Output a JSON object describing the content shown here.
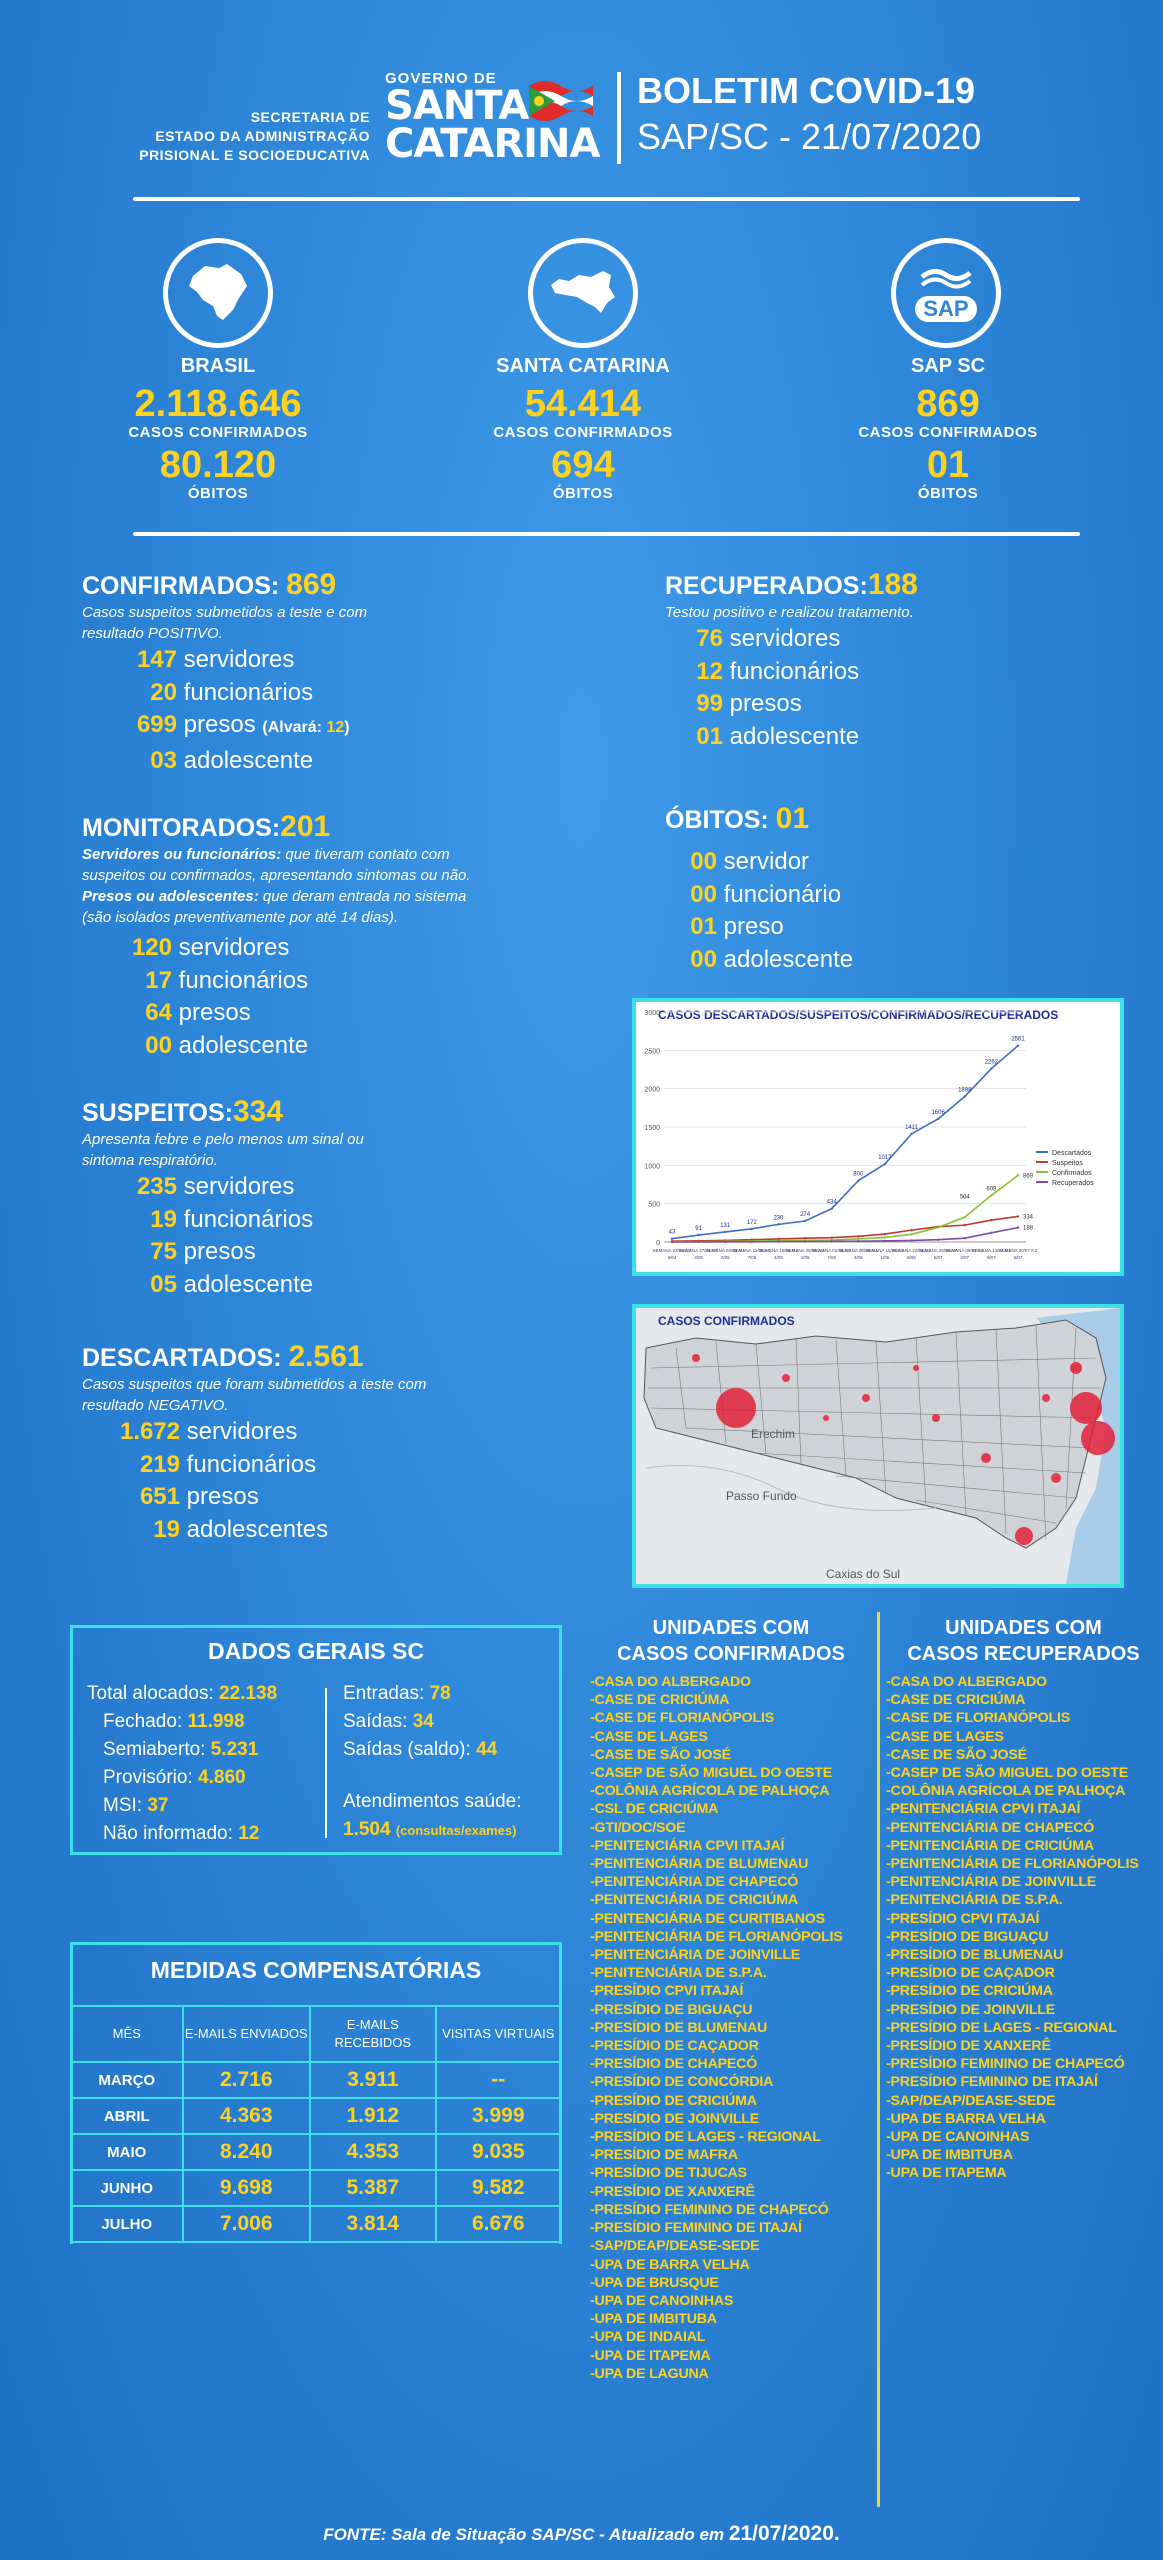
{
  "header": {
    "secretaria": [
      "SECRETARIA DE",
      "ESTADO DA ADMINISTRAÇÃO",
      "PRISIONAL E SOCIOEDUCATIVA"
    ],
    "logo_gov": "GOVERNO DE",
    "logo_line1": "SANTA",
    "logo_line2": "CATARINA",
    "title": "BOLETIM COVID-19",
    "subtitle": "SAP/SC - 21/07/2020"
  },
  "stats": [
    {
      "name": "BRASIL",
      "cases": "2.118.646",
      "cases_label": "CASOS CONFIRMADOS",
      "deaths": "80.120",
      "deaths_label": "ÓBITOS"
    },
    {
      "name": "SANTA CATARINA",
      "cases": "54.414",
      "cases_label": "CASOS CONFIRMADOS",
      "deaths": "694",
      "deaths_label": "ÓBITOS"
    },
    {
      "name": "SAP SC",
      "cases": "869",
      "cases_label": "CASOS CONFIRMADOS",
      "deaths": "01",
      "deaths_label": "ÓBITOS"
    }
  ],
  "sap_icon_text": "SAP",
  "confirmados": {
    "title": "CONFIRMADOS:",
    "total": "869",
    "desc": [
      "Casos suspeitos submetidos a teste e com",
      "resultado POSITIVO."
    ],
    "rows": [
      [
        "147",
        "servidores"
      ],
      [
        "20",
        "funcionários"
      ],
      [
        "699",
        "presos"
      ],
      [
        "03",
        "adolescente"
      ]
    ],
    "alvara_label": "(Alvará: ",
    "alvara_value": "12",
    "alvara_close": ")"
  },
  "monitorados": {
    "title": "MONITORADOS:",
    "total": "201",
    "desc_b1": "Servidores ou funcionários:",
    "desc_1": " que tiveram contato com",
    "desc_2": "suspeitos ou confirmados, apresentando sintomas ou não.",
    "desc_b3": "Presos ou adolescentes:",
    "desc_3": " que deram entrada no sistema",
    "desc_4": "(são isolados preventivamente por até 14 dias).",
    "rows": [
      [
        "120",
        "servidores"
      ],
      [
        "17",
        "funcionários"
      ],
      [
        "64",
        "presos"
      ],
      [
        "00",
        "adolescente"
      ]
    ]
  },
  "suspeitos": {
    "title": "SUSPEITOS:",
    "total": "334",
    "desc": [
      "Apresenta febre e pelo menos um sinal ou",
      "sintoma respiratório."
    ],
    "rows": [
      [
        "235",
        "servidores"
      ],
      [
        "19",
        "funcionários"
      ],
      [
        "75",
        "presos"
      ],
      [
        "05",
        "adolescente"
      ]
    ]
  },
  "descartados": {
    "title": "DESCARTADOS:",
    "total": "2.561",
    "desc": [
      "Casos suspeitos que foram submetidos a teste com",
      "resultado NEGATIVO."
    ],
    "rows": [
      [
        "1.672",
        "servidores"
      ],
      [
        "219",
        "funcionários"
      ],
      [
        "651",
        "presos"
      ],
      [
        "19",
        "adolescentes"
      ]
    ]
  },
  "recuperados": {
    "title": "RECUPERADOS:",
    "total": "188",
    "desc": [
      "Testou positivo e realizou tratamento."
    ],
    "rows": [
      [
        "76",
        "servidores"
      ],
      [
        "12",
        "funcionários"
      ],
      [
        "99",
        "presos"
      ],
      [
        "01",
        "adolescente"
      ]
    ]
  },
  "obitos": {
    "title": "ÓBITOS:",
    "total": "01",
    "rows": [
      [
        "00",
        "servidor"
      ],
      [
        "00",
        "funcionário"
      ],
      [
        "01",
        "preso"
      ],
      [
        "00",
        "adolescente"
      ]
    ]
  },
  "chart_data": {
    "type": "line",
    "title": "CASOS DESCARTADOS/SUSPEITOS/CONFIRMADOS/RECUPERADOS",
    "xlabel": "",
    "ylabel": "",
    "ylim": [
      0,
      3000
    ],
    "yticks": [
      "0",
      "500",
      "1000",
      "1500",
      "2000",
      "2500",
      "3000"
    ],
    "categories": [
      "SEMANA 22/04 A 26/04",
      "SEMANA 27/04 A 03/05",
      "SEMANA 04/05 A 10/05",
      "SEMANA 11/05 A 17/05",
      "SEMANA 18/05 A 24/05",
      "SEMANA 25/05 A 31/05",
      "SEMANA 01/06 A 07/06",
      "SEMANA 08/06 A 14/06",
      "SEMANA 15/06 A 21/06",
      "SEMANA 22/06 A 28/06",
      "SEMANA 29/06 A 05/07",
      "SEMANA 06/07 A 12/07",
      "SEMANA 13/07 A 19/07",
      "SEMANA 20/07 A 26/07"
    ],
    "series": [
      {
        "name": "Descartados",
        "color": "#3b6fc4",
        "values": [
          43,
          91,
          131,
          172,
          230,
          274,
          434,
          800,
          1017,
          1411,
          1606,
          1898,
          2262,
          2561
        ]
      },
      {
        "name": "Suspeitos",
        "color": "#c0392b",
        "values": [
          10,
          15,
          20,
          30,
          40,
          50,
          56,
          74,
          103,
          155,
          200,
          220,
          286,
          334
        ]
      },
      {
        "name": "Confirmados",
        "color": "#8cbf3a",
        "values": [
          3,
          5,
          8,
          12,
          16,
          20,
          26,
          40,
          60,
          100,
          190,
          324,
          609,
          869
        ]
      },
      {
        "name": "Recuperados",
        "color": "#7a4fa3",
        "values": [
          0,
          1,
          2,
          3,
          5,
          6,
          8,
          10,
          14,
          20,
          30,
          50,
          120,
          188
        ]
      }
    ],
    "value_labels": [
      "43",
      "91",
      "131",
      "172",
      "230",
      "274",
      "434",
      "800",
      "1017",
      "1411",
      "1606",
      "1898",
      "2262",
      "2561",
      "869",
      "609",
      "504",
      "334",
      "188"
    ]
  },
  "map": {
    "title": "CASOS CONFIRMADOS",
    "cities": [
      "Erechim",
      "Passo Fundo",
      "Caxias do Sul"
    ]
  },
  "dados_gerais": {
    "title": "DADOS GERAIS SC",
    "total_label": "Total alocados: ",
    "total_value": "22.138",
    "left": [
      [
        "Fechado: ",
        "11.998"
      ],
      [
        "Semiaberto: ",
        "5.231"
      ],
      [
        "Provisório: ",
        "4.860"
      ],
      [
        "MSI: ",
        "37"
      ],
      [
        "Não informado: ",
        "12"
      ]
    ],
    "right": [
      [
        "Entradas: ",
        "78"
      ],
      [
        "Saídas: ",
        "34"
      ],
      [
        "Saídas (saldo): ",
        "44"
      ]
    ],
    "atend_label": "Atendimentos saúde:",
    "atend_value": "1.504",
    "atend_note": "(consultas/exames)"
  },
  "medidas": {
    "title": "MEDIDAS COMPENSATÓRIAS",
    "headers": [
      "MÊS",
      "E-MAILS ENVIADOS",
      "E-MAILS RECEBIDOS",
      "VISITAS VIRTUAIS"
    ],
    "rows": [
      [
        "MARÇO",
        "2.716",
        "3.911",
        "--"
      ],
      [
        "ABRIL",
        "4.363",
        "1.912",
        "3.999"
      ],
      [
        "MAIO",
        "8.240",
        "4.353",
        "9.035"
      ],
      [
        "JUNHO",
        "9.698",
        "5.387",
        "9.582"
      ],
      [
        "JULHO",
        "7.006",
        "3.814",
        "6.676"
      ]
    ]
  },
  "unidades_confirmados": {
    "title_1": "UNIDADES COM",
    "title_2": "CASOS CONFIRMADOS",
    "items": [
      "-CASA DO ALBERGADO",
      "-CASE DE CRICIÚMA",
      "-CASE DE FLORIANÓPOLIS",
      "-CASE DE LAGES",
      "-CASE DE SÃO JOSÉ",
      "-CASEP DE SÃO MIGUEL DO OESTE",
      "-COLÔNIA AGRÍCOLA DE PALHOÇA",
      "-CSL DE CRICIÚMA",
      "-GTI/DOC/SOE",
      "-PENITENCIÁRIA CPVI ITAJAÍ",
      "-PENITENCIÁRIA DE BLUMENAU",
      "-PENITENCIÁRIA DE CHAPECÓ",
      "-PENITENCIÁRIA DE CRICIÚMA",
      "-PENITENCIÁRIA DE CURITIBANOS",
      "-PENITENCIÁRIA DE FLORIANÓPOLIS",
      "-PENITENCIÁRIA DE JOINVILLE",
      "-PENITENCIÁRIA DE S.P.A.",
      "-PRESÍDIO CPVI ITAJAÍ",
      "-PRESÍDIO DE BIGUAÇU",
      "-PRESÍDIO DE BLUMENAU",
      "-PRESÍDIO DE CAÇADOR",
      "-PRESÍDIO DE CHAPECÓ",
      "-PRESÍDIO DE CONCÓRDIA",
      "-PRESÍDIO DE CRICIÚMA",
      "-PRESÍDIO DE JOINVILLE",
      "-PRESÍDIO DE LAGES - REGIONAL",
      "-PRESÍDIO DE MAFRA",
      "-PRESÍDIO DE TIJUCAS",
      "-PRESÍDIO DE XANXERÊ",
      "-PRESÍDIO FEMININO DE CHAPECÓ",
      "-PRESÍDIO FEMININO DE ITAJAÍ",
      "-SAP/DEAP/DEASE-SEDE",
      "-UPA DE BARRA VELHA",
      "-UPA DE BRUSQUE",
      "-UPA DE CANOINHAS",
      "-UPA DE IMBITUBA",
      "-UPA DE INDAIAL",
      "-UPA DE ITAPEMA",
      "-UPA DE LAGUNA"
    ]
  },
  "unidades_recuperados": {
    "title_1": "UNIDADES COM",
    "title_2": "CASOS RECUPERADOS",
    "items": [
      "-CASA DO ALBERGADO",
      "-CASE DE CRICIÚMA",
      "-CASE DE FLORIANÓPOLIS",
      "-CASE DE LAGES",
      "-CASE DE SÃO JOSÉ",
      "-CASEP DE SÃO MIGUEL DO OESTE",
      "-COLÔNIA AGRÍCOLA DE PALHOÇA",
      "-PENITENCIÁRIA CPVI ITAJAÍ",
      "-PENITENCIÁRIA DE CHAPECÓ",
      "-PENITENCIÁRIA DE CRICIÚMA",
      "-PENITENCIÁRIA DE FLORIANÓPOLIS",
      "-PENITENCIÁRIA DE JOINVILLE",
      "-PENITENCIÁRIA DE S.P.A.",
      "-PRESÍDIO CPVI ITAJAÍ",
      "-PRESÍDIO DE BIGUAÇU",
      "-PRESÍDIO DE BLUMENAU",
      "-PRESÍDIO DE CAÇADOR",
      "-PRESÍDIO DE CRICIÚMA",
      "-PRESÍDIO DE JOINVILLE",
      "-PRESÍDIO DE LAGES - REGIONAL",
      "-PRESÍDIO DE XANXERÊ",
      "-PRESÍDIO FEMININO DE CHAPECÓ",
      "-PRESÍDIO FEMININO DE ITAJAÍ",
      "-SAP/DEAP/DEASE-SEDE",
      "-UPA DE BARRA VELHA",
      "-UPA DE CANOINHAS",
      "-UPA DE IMBITUBA",
      "-UPA DE ITAPEMA"
    ]
  },
  "footer": {
    "text": "FONTE: Sala de Situação SAP/SC - Atualizado em ",
    "date": "21/07/2020."
  },
  "colors": {
    "accent_yellow": "#ffd21f",
    "border_cyan": "#3ee0e8",
    "background_blue": "#2d86d8"
  }
}
